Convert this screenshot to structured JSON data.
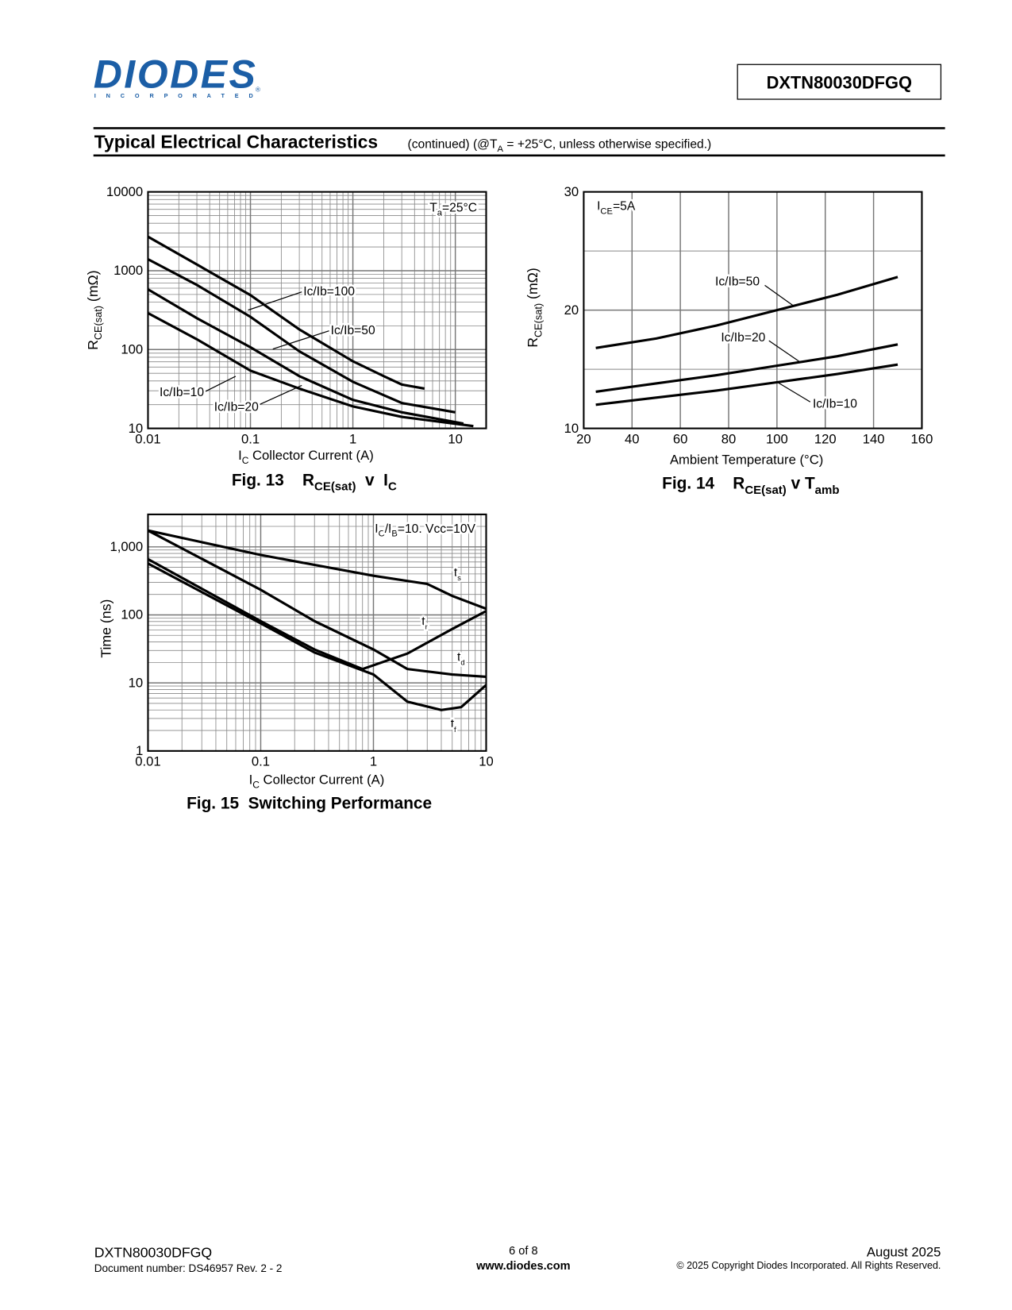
{
  "header": {
    "logo": "DIODES",
    "logo_sub": "I N C O R P O R A T E D",
    "logo_mark": "®",
    "part": "DXTN80030DFGQ"
  },
  "section": {
    "title": "Typical Electrical Characteristics",
    "note": [
      "(continued) (@T",
      "A",
      " = +25°C, unless otherwise specified.)"
    ]
  },
  "chart_data": [
    {
      "type": "line",
      "xlog": true,
      "ylog": true,
      "grid": true,
      "color": "#000000",
      "xlim": [
        0.01,
        20
      ],
      "xticks": [
        0.01,
        0.1,
        1,
        10
      ],
      "ylim": [
        10,
        10000
      ],
      "yticks": [
        10,
        100,
        1000,
        10000
      ],
      "x_label": [
        "I",
        "C",
        "  Collector Current (A)"
      ],
      "y_label": [
        "R",
        "CE(sat)",
        " (mΩ)"
      ],
      "annotation": [
        "T",
        "a",
        "=25°C"
      ],
      "caption": [
        "Fig. 13    R",
        "CE(sat)",
        "  v  I",
        "C"
      ],
      "series": [
        {
          "name": "Ic/Ib=100",
          "x": [
            0.01,
            0.03,
            0.1,
            0.3,
            1,
            2,
            3,
            5
          ],
          "values": [
            2700,
            1200,
            490,
            180,
            71,
            46,
            36,
            32
          ]
        },
        {
          "name": "Ic/Ib=50",
          "x": [
            0.01,
            0.03,
            0.1,
            0.3,
            1,
            3,
            10
          ],
          "values": [
            1400,
            660,
            260,
            95,
            39,
            21,
            16
          ]
        },
        {
          "name": "Ic/Ib=20",
          "x": [
            0.01,
            0.03,
            0.1,
            0.3,
            1,
            3,
            12
          ],
          "values": [
            580,
            250,
            107,
            46,
            23,
            16,
            11.5
          ]
        },
        {
          "name": "Ic/Ib=10",
          "x": [
            0.01,
            0.03,
            0.1,
            0.3,
            1,
            3,
            15
          ],
          "values": [
            290,
            135,
            54,
            32,
            19,
            14,
            10.7
          ]
        }
      ]
    },
    {
      "type": "line",
      "xlog": false,
      "ylog": false,
      "grid": true,
      "color": "#000000",
      "xlim": [
        20,
        160
      ],
      "xticks": [
        20,
        40,
        60,
        80,
        100,
        120,
        140,
        160
      ],
      "ylim": [
        10,
        30
      ],
      "yticks": [
        10,
        20,
        30
      ],
      "y_minor_grid": [
        15,
        25
      ],
      "x_label": [
        "Ambient Temperature (°C)"
      ],
      "y_label": [
        "R",
        "CE(sat)",
        " (mΩ)"
      ],
      "annotation": [
        "I",
        "CE",
        "=5A"
      ],
      "caption": [
        "Fig. 14    R",
        "CE(sat)",
        " v T",
        "amb"
      ],
      "x": [
        25,
        50,
        75,
        100,
        125,
        150
      ],
      "series": [
        {
          "name": "Ic/Ib=50",
          "values": [
            16.8,
            17.6,
            18.7,
            20.0,
            21.3,
            22.8
          ]
        },
        {
          "name": "Ic/Ib=20",
          "values": [
            13.1,
            13.8,
            14.5,
            15.3,
            16.1,
            17.1
          ]
        },
        {
          "name": "Ic/Ib=10",
          "values": [
            12.0,
            12.6,
            13.2,
            13.9,
            14.6,
            15.4
          ]
        }
      ]
    },
    {
      "type": "line",
      "xlog": true,
      "ylog": true,
      "grid": true,
      "color": "#000000",
      "xlim": [
        0.01,
        10
      ],
      "xticks": [
        0.01,
        0.1,
        1,
        10
      ],
      "ylim": [
        1,
        3000
      ],
      "yticks": [
        1,
        10,
        100,
        {
          "value": 1000,
          "label": "1,000"
        }
      ],
      "x_label": [
        "I",
        "C",
        "  Collector Current (A)"
      ],
      "y_label": [
        "Time (ns)"
      ],
      "annotation": [
        "I",
        "C",
        "/I",
        "B",
        "=10. Vcc=10V"
      ],
      "caption": [
        "Fig. 15  Switching Performance"
      ],
      "series": [
        {
          "name": "t",
          "name_sub": "s",
          "x": [
            0.01,
            0.1,
            1,
            3,
            5,
            10
          ],
          "values": [
            1740,
            760,
            376,
            285,
            190,
            123
          ]
        },
        {
          "name": "t",
          "name_sub": "d",
          "x": [
            0.01,
            0.1,
            0.3,
            1,
            2,
            5,
            10
          ],
          "values": [
            1740,
            234,
            81,
            31,
            16,
            13.3,
            12.3
          ]
        },
        {
          "name": "t",
          "name_sub": "r",
          "x": [
            0.01,
            0.1,
            0.3,
            0.8,
            2,
            5,
            10
          ],
          "values": [
            660,
            81,
            31,
            16,
            27,
            62,
            114
          ]
        },
        {
          "name": "t",
          "name_sub": "f",
          "x": [
            0.01,
            0.1,
            0.3,
            1,
            2,
            4,
            6,
            10
          ],
          "values": [
            570,
            75,
            28,
            13.3,
            5.3,
            4.0,
            4.4,
            9.3
          ]
        }
      ]
    }
  ],
  "footer": {
    "part": "DXTN80030DFGQ",
    "doc": "Document number: DS46957 Rev. 2 - 2",
    "page": "6 of 8",
    "url": "www.diodes.com",
    "date": "August 2025",
    "copyright": "© 2025 Copyright Diodes Incorporated. All Rights Reserved."
  }
}
